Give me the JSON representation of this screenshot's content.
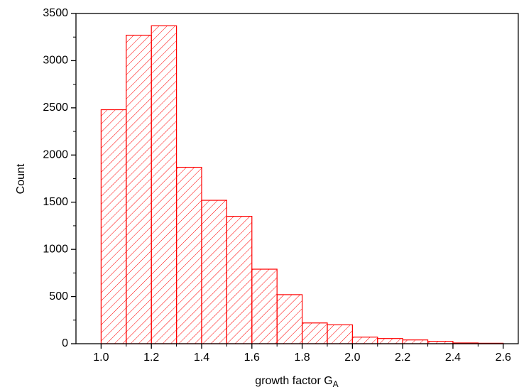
{
  "chart_data": {
    "type": "histogram",
    "xlabel": "growth factor G",
    "xlabel_subscript": "A",
    "ylabel": "Count",
    "bins": [
      1.0,
      1.1,
      1.2,
      1.3,
      1.4,
      1.5,
      1.6,
      1.7,
      1.8,
      1.9,
      2.0,
      2.1,
      2.2,
      2.3,
      2.4,
      2.5,
      2.6
    ],
    "values": [
      2480,
      3270,
      3370,
      1870,
      1520,
      1350,
      790,
      520,
      220,
      200,
      70,
      55,
      40,
      25,
      8,
      5
    ],
    "color": "#ff0000",
    "xlim": [
      0.9,
      2.66
    ],
    "ylim": [
      0,
      3500
    ],
    "xticks": [
      {
        "value": 1.0,
        "label": "1.0"
      },
      {
        "value": 1.2,
        "label": "1.2"
      },
      {
        "value": 1.4,
        "label": "1.4"
      },
      {
        "value": 1.6,
        "label": "1.6"
      },
      {
        "value": 1.8,
        "label": "1.8"
      },
      {
        "value": 2.0,
        "label": "2.0"
      },
      {
        "value": 2.2,
        "label": "2.2"
      },
      {
        "value": 2.4,
        "label": "2.4"
      },
      {
        "value": 2.6,
        "label": "2.6"
      }
    ],
    "yticks": [
      0,
      500,
      1000,
      1500,
      2000,
      2500,
      3000,
      3500
    ]
  }
}
